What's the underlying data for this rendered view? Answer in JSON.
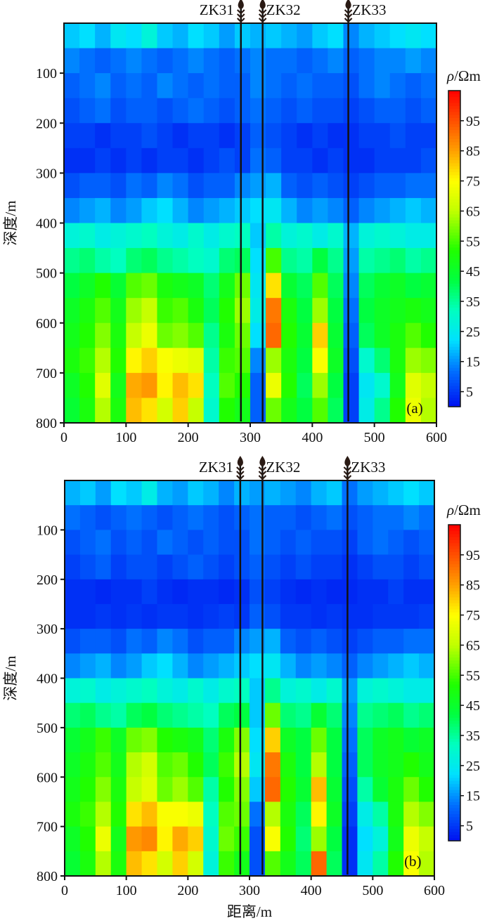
{
  "chart_data": [
    {
      "type": "heatmap",
      "panel_label": "(a)",
      "ylabel": "深度/m",
      "xlabel": "",
      "x_range": [
        0,
        600
      ],
      "y_range": [
        0,
        800
      ],
      "y_inverted": true,
      "x_ticks": [
        "0",
        "100",
        "200",
        "300",
        "400",
        "500",
        "600"
      ],
      "y_ticks": [
        "100",
        "200",
        "300",
        "400",
        "500",
        "600",
        "700",
        "800"
      ],
      "cell_x_step": 25,
      "cell_y_step": 50,
      "colorbar": {
        "title_symbol": "ρ",
        "title_unit": "/Ωm",
        "range": [
          0,
          105
        ],
        "ticks": [
          "5",
          "15",
          "25",
          "35",
          "45",
          "55",
          "65",
          "75",
          "85",
          "95"
        ]
      },
      "wells": [
        {
          "name": "ZK31",
          "x": 285
        },
        {
          "name": "ZK32",
          "x": 320
        },
        {
          "name": "ZK33",
          "x": 458
        }
      ],
      "values": [
        [
          20,
          22,
          18,
          24,
          22,
          28,
          20,
          18,
          22,
          20,
          16,
          20,
          18,
          20,
          18,
          16,
          20,
          22,
          14,
          18,
          20,
          22,
          24,
          22
        ],
        [
          14,
          12,
          10,
          12,
          14,
          12,
          10,
          12,
          14,
          12,
          10,
          12,
          14,
          12,
          12,
          10,
          12,
          14,
          10,
          12,
          14,
          14,
          16,
          14
        ],
        [
          10,
          12,
          14,
          10,
          12,
          10,
          14,
          12,
          10,
          12,
          10,
          10,
          14,
          12,
          10,
          12,
          10,
          10,
          8,
          12,
          14,
          12,
          10,
          12
        ],
        [
          8,
          10,
          12,
          8,
          10,
          10,
          8,
          10,
          12,
          10,
          8,
          10,
          12,
          10,
          8,
          10,
          8,
          8,
          6,
          8,
          10,
          10,
          8,
          10
        ],
        [
          6,
          6,
          4,
          6,
          6,
          8,
          6,
          4,
          6,
          6,
          4,
          6,
          10,
          8,
          6,
          4,
          6,
          4,
          4,
          6,
          6,
          8,
          6,
          6
        ],
        [
          4,
          4,
          6,
          4,
          6,
          4,
          6,
          6,
          4,
          6,
          8,
          6,
          12,
          10,
          6,
          6,
          4,
          6,
          4,
          4,
          6,
          6,
          6,
          8
        ],
        [
          8,
          10,
          10,
          8,
          12,
          10,
          14,
          12,
          8,
          10,
          10,
          14,
          16,
          18,
          10,
          8,
          10,
          8,
          6,
          8,
          10,
          10,
          12,
          12
        ],
        [
          14,
          16,
          18,
          14,
          16,
          20,
          22,
          18,
          14,
          16,
          18,
          20,
          22,
          24,
          18,
          14,
          16,
          14,
          10,
          14,
          16,
          18,
          20,
          18
        ],
        [
          28,
          30,
          26,
          28,
          30,
          32,
          28,
          26,
          30,
          26,
          30,
          32,
          20,
          34,
          28,
          30,
          26,
          30,
          18,
          28,
          30,
          28,
          26,
          26
        ],
        [
          36,
          38,
          34,
          32,
          38,
          40,
          36,
          34,
          32,
          30,
          38,
          40,
          22,
          55,
          36,
          34,
          42,
          36,
          16,
          34,
          36,
          38,
          34,
          36
        ],
        [
          42,
          46,
          52,
          44,
          56,
          58,
          50,
          48,
          46,
          38,
          48,
          58,
          24,
          78,
          44,
          40,
          56,
          40,
          14,
          40,
          44,
          46,
          42,
          44
        ],
        [
          46,
          50,
          56,
          48,
          62,
          66,
          54,
          56,
          50,
          40,
          52,
          62,
          26,
          90,
          50,
          42,
          62,
          42,
          12,
          42,
          46,
          48,
          50,
          48
        ],
        [
          48,
          52,
          60,
          50,
          66,
          72,
          58,
          60,
          56,
          36,
          50,
          58,
          22,
          92,
          52,
          44,
          80,
          44,
          10,
          40,
          46,
          50,
          56,
          52
        ],
        [
          50,
          54,
          64,
          52,
          76,
          80,
          74,
          72,
          70,
          34,
          54,
          56,
          14,
          62,
          50,
          42,
          74,
          46,
          8,
          30,
          38,
          50,
          62,
          60
        ],
        [
          46,
          52,
          70,
          48,
          84,
          86,
          76,
          82,
          78,
          32,
          56,
          52,
          10,
          72,
          52,
          40,
          62,
          42,
          6,
          24,
          30,
          48,
          70,
          66
        ],
        [
          44,
          50,
          64,
          50,
          82,
          78,
          68,
          80,
          66,
          30,
          52,
          48,
          10,
          58,
          48,
          42,
          56,
          40,
          6,
          26,
          36,
          52,
          72,
          64
        ]
      ]
    },
    {
      "type": "heatmap",
      "panel_label": "(b)",
      "ylabel": "深度/m",
      "xlabel": "距离/m",
      "x_range": [
        0,
        600
      ],
      "y_range": [
        0,
        800
      ],
      "y_inverted": true,
      "x_ticks": [
        "0",
        "100",
        "200",
        "300",
        "400",
        "500",
        "600"
      ],
      "y_ticks": [
        "100",
        "200",
        "300",
        "400",
        "500",
        "600",
        "700",
        "800"
      ],
      "cell_x_step": 25,
      "cell_y_step": 50,
      "colorbar": {
        "title_symbol": "ρ",
        "title_unit": "/Ωm",
        "range": [
          0,
          105
        ],
        "ticks": [
          "5",
          "15",
          "25",
          "35",
          "45",
          "55",
          "65",
          "75",
          "85",
          "95"
        ]
      },
      "wells": [
        {
          "name": "ZK31",
          "x": 285
        },
        {
          "name": "ZK32",
          "x": 321
        },
        {
          "name": "ZK33",
          "x": 459
        }
      ],
      "values": [
        [
          18,
          20,
          16,
          22,
          20,
          26,
          18,
          16,
          20,
          18,
          14,
          18,
          16,
          18,
          16,
          14,
          18,
          20,
          12,
          16,
          18,
          20,
          22,
          20
        ],
        [
          12,
          10,
          8,
          10,
          12,
          10,
          8,
          10,
          12,
          10,
          8,
          10,
          12,
          10,
          10,
          8,
          10,
          12,
          8,
          10,
          12,
          12,
          14,
          12
        ],
        [
          8,
          10,
          12,
          8,
          10,
          8,
          12,
          10,
          8,
          10,
          8,
          8,
          12,
          10,
          8,
          10,
          8,
          8,
          6,
          10,
          12,
          10,
          8,
          10
        ],
        [
          6,
          8,
          10,
          6,
          8,
          8,
          6,
          8,
          10,
          8,
          6,
          8,
          10,
          8,
          6,
          8,
          6,
          6,
          4,
          6,
          8,
          8,
          6,
          8
        ],
        [
          4,
          4,
          3,
          4,
          4,
          6,
          4,
          3,
          4,
          4,
          3,
          4,
          8,
          6,
          4,
          3,
          4,
          3,
          3,
          4,
          4,
          6,
          4,
          4
        ],
        [
          4,
          4,
          5,
          4,
          5,
          4,
          5,
          5,
          4,
          5,
          6,
          5,
          10,
          8,
          5,
          5,
          4,
          5,
          4,
          4,
          5,
          5,
          5,
          6
        ],
        [
          8,
          10,
          10,
          8,
          12,
          10,
          14,
          12,
          8,
          10,
          10,
          14,
          16,
          18,
          10,
          8,
          10,
          8,
          6,
          8,
          10,
          10,
          12,
          12
        ],
        [
          14,
          16,
          18,
          14,
          16,
          20,
          22,
          18,
          14,
          16,
          18,
          20,
          22,
          24,
          18,
          14,
          16,
          14,
          10,
          14,
          16,
          18,
          20,
          18
        ],
        [
          28,
          30,
          26,
          28,
          30,
          32,
          28,
          26,
          30,
          26,
          30,
          32,
          20,
          36,
          28,
          30,
          26,
          30,
          16,
          28,
          30,
          28,
          26,
          26
        ],
        [
          38,
          40,
          36,
          34,
          40,
          42,
          38,
          36,
          34,
          32,
          40,
          42,
          20,
          58,
          38,
          36,
          44,
          38,
          14,
          36,
          38,
          40,
          36,
          38
        ],
        [
          44,
          48,
          54,
          46,
          58,
          60,
          52,
          50,
          48,
          38,
          50,
          60,
          22,
          80,
          46,
          42,
          58,
          42,
          12,
          40,
          46,
          48,
          44,
          46
        ],
        [
          46,
          50,
          56,
          48,
          64,
          68,
          56,
          58,
          52,
          40,
          54,
          64,
          24,
          90,
          50,
          42,
          64,
          42,
          10,
          40,
          46,
          48,
          52,
          48
        ],
        [
          48,
          52,
          60,
          50,
          66,
          70,
          58,
          62,
          56,
          34,
          52,
          60,
          20,
          92,
          52,
          44,
          82,
          44,
          8,
          34,
          44,
          50,
          58,
          52
        ],
        [
          50,
          54,
          64,
          52,
          78,
          82,
          74,
          74,
          72,
          32,
          56,
          58,
          12,
          64,
          50,
          40,
          76,
          46,
          6,
          26,
          34,
          50,
          64,
          60
        ],
        [
          46,
          52,
          72,
          48,
          86,
          88,
          76,
          84,
          80,
          30,
          58,
          54,
          8,
          74,
          52,
          38,
          62,
          42,
          4,
          22,
          28,
          48,
          72,
          66
        ],
        [
          44,
          50,
          64,
          50,
          82,
          78,
          68,
          80,
          68,
          28,
          54,
          48,
          8,
          56,
          48,
          40,
          92,
          40,
          4,
          24,
          34,
          52,
          74,
          64
        ]
      ]
    }
  ]
}
